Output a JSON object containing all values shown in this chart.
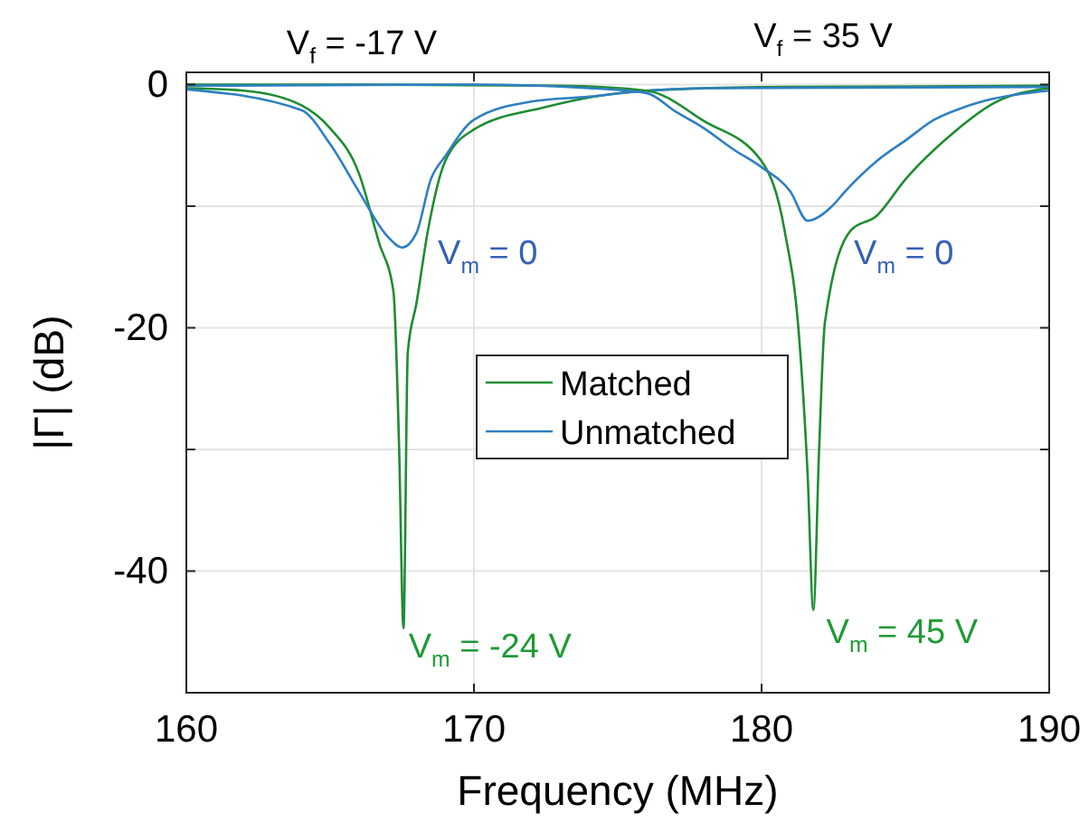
{
  "chart_data": {
    "type": "line",
    "xlabel": "Frequency (MHz)",
    "ylabel": "|Γ| (dB)",
    "xlim": [
      160,
      190
    ],
    "ylim": [
      -50,
      1
    ],
    "xticks": [
      160,
      170,
      180,
      190
    ],
    "yticks": [
      {
        "value": -50,
        "label": null
      },
      {
        "value": -40,
        "label": "-40"
      },
      {
        "value": -30,
        "label": null
      },
      {
        "value": -20,
        "label": "-20"
      },
      {
        "value": -10,
        "label": null
      },
      {
        "value": 0,
        "label": "0"
      }
    ],
    "grid": true,
    "legend": "center",
    "line_style": "solid",
    "marker": "none",
    "series": [
      {
        "name": "Matched",
        "color": "#1e8c32",
        "x": [
          160,
          162,
          164,
          165,
          166,
          166.7,
          167.2,
          167.4,
          167.55,
          167.7,
          168,
          168.4,
          169,
          170,
          172.4,
          176,
          180.8,
          190
        ],
        "values": [
          -0.3,
          -0.5,
          -1.7,
          -3.6,
          -7.3,
          -13,
          -17,
          -30,
          -44.7,
          -22,
          -18,
          -12,
          -6.3,
          -3.7,
          -1.9,
          -0.5,
          -0.2,
          -0.1
        ]
      },
      {
        "name": "Unmatched",
        "color": "#2e7fc2",
        "x": [
          160,
          164,
          165,
          166,
          167,
          167.5,
          168,
          168.5,
          169,
          170,
          172,
          174,
          176,
          178,
          190
        ],
        "values": [
          -0.4,
          -2.1,
          -4.9,
          -8.8,
          -12.5,
          -13.4,
          -12.2,
          -7.8,
          -5.9,
          -2.9,
          -1.4,
          -1,
          -0.5,
          -0.3,
          -0.2
        ]
      },
      {
        "color": "#1e8c32",
        "x": [
          160,
          166,
          173,
          176,
          178,
          180,
          180.8,
          181.3,
          181.6,
          181.8,
          182,
          182.2,
          183.1,
          184,
          185,
          186.7,
          188.1,
          190
        ],
        "values": [
          0,
          0,
          -0.1,
          -0.5,
          -3,
          -6.3,
          -12,
          -20.6,
          -32,
          -43.2,
          -30,
          -19.6,
          -12,
          -10.8,
          -7.8,
          -3.9,
          -1.5,
          -0.3
        ]
      },
      {
        "color": "#2e7fc2",
        "x": [
          160,
          170,
          174,
          176,
          177,
          178,
          179,
          180,
          181,
          181.6,
          182.45,
          182.9,
          184,
          185,
          186,
          187,
          188,
          190
        ],
        "values": [
          -0.1,
          0,
          -0.3,
          -0.7,
          -2.2,
          -3.6,
          -5.3,
          -6.8,
          -8.8,
          -11.2,
          -10,
          -8.8,
          -6.3,
          -4.6,
          -2.9,
          -1.9,
          -1.2,
          -0.5
        ]
      }
    ],
    "annotations": [
      "V$_{f}$ = -17 V",
      "V$_{f}$ = 35 V",
      "V$_{m}$ = 0",
      "V$_{m}$ = 0",
      {
        "text": "V$_{m}$ = -24 V",
        "x": 167.6,
        "y": -44.7
      },
      {
        "text": "V$_{m}$ = 45 V",
        "x": 182,
        "y": -43.5
      }
    ]
  }
}
